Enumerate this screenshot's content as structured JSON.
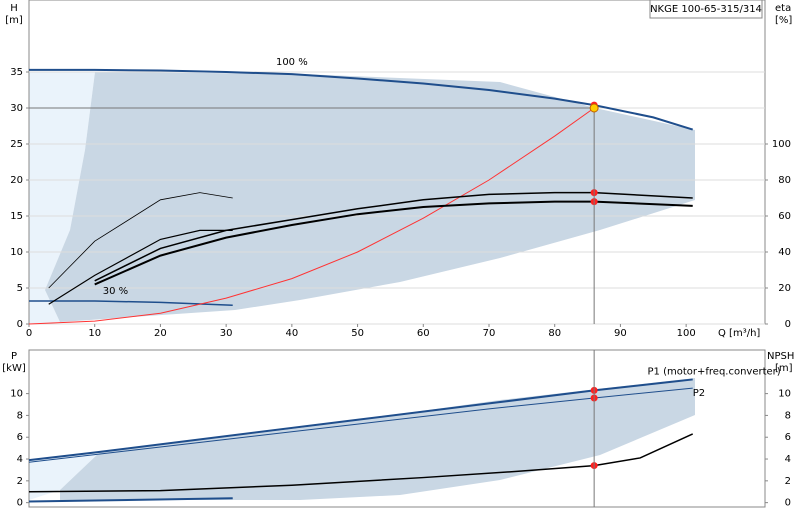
{
  "chart_data": [
    {
      "type": "line",
      "title": "NKGE 100-65-315/314",
      "y_label": "H",
      "y_unit": "[m]",
      "y2_label": "eta",
      "y2_unit": "[%]",
      "x_label": "Q [m³/h]",
      "xlim": [
        0,
        112
      ],
      "xticks": [
        0,
        10,
        20,
        30,
        40,
        50,
        60,
        70,
        80,
        90,
        100
      ],
      "ylim": [
        0,
        45
      ],
      "yticks": [
        0,
        5,
        10,
        15,
        20,
        25,
        30,
        35
      ],
      "y2lim": [
        0,
        180
      ],
      "y2ticks": [
        0,
        20,
        40,
        60,
        80,
        100
      ],
      "grid": true,
      "duty_point": {
        "q": 86,
        "h": 30
      },
      "series": [
        {
          "name": "100 %",
          "color": "#1f4e8c",
          "width": 2,
          "x": [
            0,
            10,
            20,
            30,
            40,
            50,
            60,
            70,
            80,
            86,
            95,
            101
          ],
          "values": [
            35.3,
            35.3,
            35.2,
            35.0,
            34.7,
            34.1,
            33.4,
            32.5,
            31.3,
            30.4,
            28.7,
            27.0
          ]
        },
        {
          "name": "30 %",
          "color": "#1f4e8c",
          "width": 1.5,
          "x": [
            0,
            10,
            20,
            31
          ],
          "values": [
            3.2,
            3.2,
            3.0,
            2.6
          ]
        },
        {
          "color": "#ff3333",
          "width": 1,
          "x": [
            0,
            10,
            20,
            30,
            40,
            50,
            60,
            70,
            80,
            86
          ],
          "values": [
            0,
            0.4,
            1.5,
            3.6,
            6.3,
            10,
            14.7,
            20,
            26.1,
            30
          ]
        },
        {
          "color": "#000000",
          "width": 2,
          "axis": "y2",
          "x": [
            10,
            20,
            30,
            40,
            50,
            60,
            70,
            80,
            86,
            101
          ],
          "values": [
            22,
            38,
            48,
            55,
            61,
            65,
            67,
            68,
            68,
            65.6
          ]
        },
        {
          "color": "#000000",
          "width": 1.5,
          "axis": "y2",
          "x": [
            10,
            20,
            30,
            40,
            50,
            60,
            70,
            80,
            86,
            101
          ],
          "values": [
            24,
            42,
            52,
            58,
            64,
            69,
            72,
            73,
            73,
            70
          ]
        },
        {
          "color": "#000000",
          "width": 1.2,
          "axis": "y2",
          "x": [
            3,
            10,
            20,
            26,
            31
          ],
          "values": [
            11,
            27,
            47,
            52,
            52
          ]
        },
        {
          "color": "#000000",
          "width": 0.8,
          "axis": "y2",
          "x": [
            3,
            10,
            20,
            26,
            31
          ],
          "values": [
            20,
            46,
            69,
            73,
            70
          ]
        }
      ]
    },
    {
      "type": "line",
      "y_label": "P",
      "y_unit": "[kW]",
      "y2_label": "NPSH",
      "y2_unit": "[m]",
      "xlim": [
        0,
        112
      ],
      "ylim": [
        -0.4,
        14
      ],
      "yticks": [
        0,
        2,
        4,
        6,
        8,
        10
      ],
      "y2lim": [
        -0.4,
        14
      ],
      "y2ticks": [
        0,
        2,
        4,
        6,
        8,
        10
      ],
      "duty_point": {
        "q": 86
      },
      "series": [
        {
          "name": "P1 (motor+freq.converter)",
          "color": "#1f4e8c",
          "width": 2,
          "x": [
            0,
            10,
            30,
            50,
            70,
            86,
            101
          ],
          "values": [
            3.9,
            4.6,
            6.1,
            7.6,
            9.1,
            10.3,
            11.3
          ]
        },
        {
          "name": "P2",
          "color": "#1f4e8c",
          "width": 1,
          "x": [
            0,
            10,
            30,
            50,
            70,
            86,
            101
          ],
          "values": [
            3.7,
            4.4,
            5.8,
            7.2,
            8.6,
            9.6,
            10.5
          ]
        },
        {
          "color": "#1f4e8c",
          "width": 2,
          "x": [
            0,
            31
          ],
          "values": [
            0.1,
            0.4
          ]
        },
        {
          "color": "#000000",
          "width": 1.5,
          "axis": "y2",
          "x": [
            0,
            20,
            40,
            60,
            75,
            86,
            93,
            101
          ],
          "values": [
            1.0,
            1.1,
            1.6,
            2.3,
            2.9,
            3.4,
            4.1,
            6.3
          ]
        }
      ]
    }
  ]
}
